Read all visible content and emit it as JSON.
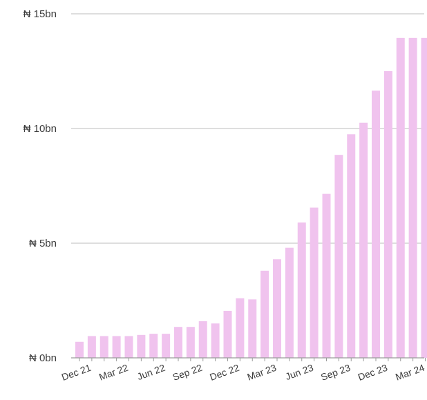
{
  "chart_data": {
    "type": "bar",
    "title": "",
    "xlabel": "",
    "ylabel": "",
    "ylim": [
      0,
      15
    ],
    "y_unit": "bn NGN",
    "y_ticks": [
      0,
      5,
      10,
      15
    ],
    "y_tick_labels": [
      "₦ 0bn",
      "₦ 5bn",
      "₦ 10bn",
      "₦ 15bn"
    ],
    "grid": "horizontal",
    "bar_color": "#f0c3ee",
    "categories": [
      "Nov 21",
      "Dec 21",
      "Jan 22",
      "Feb 22",
      "Mar 22",
      "Apr 22",
      "May 22",
      "Jun 22",
      "Jul 22",
      "Aug 22",
      "Sep 22",
      "Oct 22",
      "Nov 22",
      "Dec 22",
      "Jan 23",
      "Feb 23",
      "Mar 23",
      "Apr 23",
      "May 23",
      "Jun 23",
      "Jul 23",
      "Aug 23",
      "Sep 23",
      "Oct 23",
      "Nov 23",
      "Dec 23",
      "Jan 24",
      "Feb 24",
      "Mar 24"
    ],
    "values": [
      0.7,
      0.95,
      0.95,
      0.95,
      0.95,
      1.0,
      1.05,
      1.05,
      1.35,
      1.35,
      1.6,
      1.5,
      2.05,
      2.6,
      2.55,
      3.8,
      4.3,
      4.8,
      5.9,
      6.55,
      7.15,
      8.85,
      9.75,
      10.25,
      11.65,
      12.5,
      13.95,
      13.95,
      13.95
    ],
    "x_tick_labels": [
      {
        "index": 1,
        "label": "Dec 21"
      },
      {
        "index": 4,
        "label": "Mar 22"
      },
      {
        "index": 7,
        "label": "Jun 22"
      },
      {
        "index": 10,
        "label": "Sep 22"
      },
      {
        "index": 13,
        "label": "Dec 22"
      },
      {
        "index": 16,
        "label": "Mar 23"
      },
      {
        "index": 19,
        "label": "Jun 23"
      },
      {
        "index": 22,
        "label": "Sep 23"
      },
      {
        "index": 25,
        "label": "Dec 23"
      },
      {
        "index": 28,
        "label": "Mar 24"
      }
    ]
  }
}
